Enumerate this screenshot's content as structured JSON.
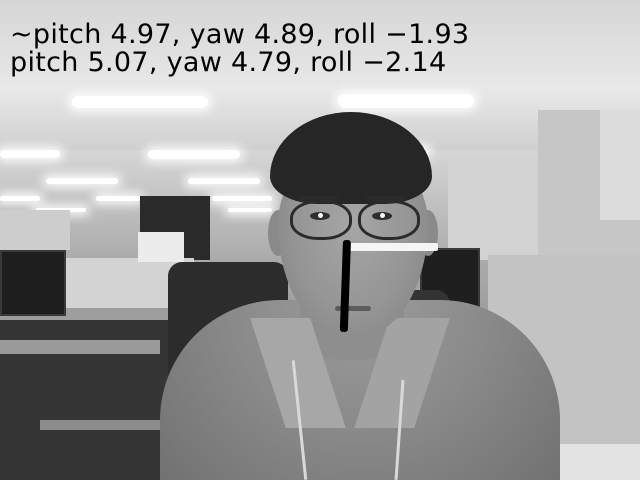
{
  "overlay": {
    "predicted_pose": "~pitch 4.97, yaw 4.89, roll −1.93",
    "reference_pose": " pitch 5.07, yaw 4.79, roll −2.14"
  },
  "pose_axes": {
    "x_axis_color": "#f5f5f5",
    "y_axis_color": "#000000"
  },
  "scene": {
    "description_icon": "camera-frame-icon"
  }
}
